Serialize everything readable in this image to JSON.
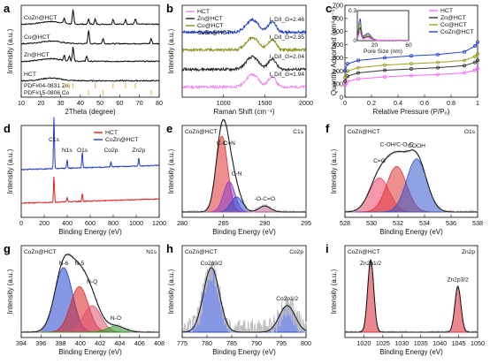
{
  "chart_data": [
    {
      "panel": "a",
      "type": "line",
      "xlabel": "2Theta (degree)",
      "ylabel": "Intensity (a.u.)",
      "xlim": [
        10,
        80
      ],
      "xticks": [
        10,
        20,
        30,
        40,
        50,
        60,
        70,
        80
      ],
      "series": [
        {
          "name": "CoZn@HCT",
          "color": "#000000",
          "offset": 0.0
        },
        {
          "name": "Co@HCT",
          "color": "#000000",
          "offset": 0.0
        },
        {
          "name": "Zn@HCT",
          "color": "#000000",
          "offset": 0.0
        },
        {
          "name": "HCT",
          "color": "#000000",
          "offset": 0.0
        }
      ],
      "references": [
        {
          "name": "PDF#15-0806 Co",
          "color": "#e8b84a",
          "peaks": [
            44.2,
            51.5,
            75.9
          ]
        },
        {
          "name": "PDF#04-0831 Zn",
          "color": "#e8b84a",
          "peaks": [
            31.8,
            34.4,
            36.3,
            47.5,
            56.6,
            62.9,
            67.9
          ]
        }
      ]
    },
    {
      "panel": "b",
      "type": "line",
      "xlabel": "Raman Shift (cm⁻¹)",
      "ylabel": "Intensity (a.u.)",
      "xlim": [
        500,
        2000
      ],
      "xticks": [
        1000,
        1500,
        2000
      ],
      "series": [
        {
          "name": "HCT",
          "color": "#ee82ee",
          "ratio": "I_D/I_G=1.94"
        },
        {
          "name": "Zn@HCT",
          "color": "#222222",
          "ratio": "I_D/I_G=2.04"
        },
        {
          "name": "Co@HCT",
          "color": "#8b8b1a",
          "ratio": "I_D/I_G=2.35"
        },
        {
          "name": "CoZn@HCT",
          "color": "#1f3fbf",
          "ratio": "I_D/I_G=2.46"
        }
      ]
    },
    {
      "panel": "c",
      "type": "line",
      "xlabel": "Relative Pressure (P/P₀)",
      "ylabel": "Quantity Adsorbed (cm³ g⁻¹)",
      "xlim": [
        0,
        1.0
      ],
      "ylim": [
        0,
        700
      ],
      "xticks": [
        0.0,
        0.2,
        0.4,
        0.6,
        0.8,
        1.0
      ],
      "yticks": [
        0,
        100,
        200,
        300,
        400,
        500,
        600,
        700
      ],
      "series": [
        {
          "name": "HCT",
          "color": "#ff66ff",
          "x": [
            0.0,
            0.02,
            0.1,
            0.3,
            0.5,
            0.7,
            0.9,
            0.98,
            1.0
          ],
          "y": [
            90,
            120,
            140,
            155,
            165,
            172,
            185,
            205,
            220
          ]
        },
        {
          "name": "Zn@HCT",
          "color": "#333333",
          "x": [
            0.0,
            0.02,
            0.1,
            0.3,
            0.5,
            0.7,
            0.9,
            0.98,
            1.0
          ],
          "y": [
            120,
            160,
            185,
            205,
            215,
            225,
            240,
            265,
            280
          ]
        },
        {
          "name": "Co@HCT",
          "color": "#a0a020",
          "x": [
            0.0,
            0.02,
            0.1,
            0.3,
            0.5,
            0.7,
            0.9,
            0.98,
            1.0
          ],
          "y": [
            150,
            200,
            225,
            245,
            255,
            265,
            280,
            310,
            330
          ]
        },
        {
          "name": "CoZn@HCT",
          "color": "#2244cc",
          "x": [
            0.0,
            0.02,
            0.1,
            0.3,
            0.5,
            0.7,
            0.9,
            0.98,
            1.0
          ],
          "y": [
            200,
            255,
            280,
            300,
            315,
            325,
            345,
            390,
            420
          ]
        }
      ],
      "inset": {
        "xlabel": "Pore Size (nm)",
        "ylabel": "dV/dD (cm³ g⁻¹ nm⁻¹)",
        "xlim": [
          0,
          60
        ],
        "ylim": [
          0,
          0.3
        ],
        "xticks": [
          20,
          60
        ],
        "yticks": [
          0.0,
          0.3
        ]
      }
    },
    {
      "panel": "d",
      "type": "line",
      "xlabel": "Binding Energy (eV)",
      "ylabel": "Intensity (a.u.)",
      "xlim": [
        0,
        1200
      ],
      "xticks": [
        0,
        200,
        400,
        600,
        800,
        1000,
        1200
      ],
      "series": [
        {
          "name": "HCT",
          "color": "#e02020"
        },
        {
          "name": "CoZn@HCT",
          "color": "#1f3fbf"
        }
      ],
      "annotations": [
        "C1s",
        "N1s",
        "O1s",
        "Co2p",
        "Zn2p"
      ]
    },
    {
      "panel": "e",
      "type": "line",
      "sample": "CoZn@HCT",
      "region": "C1s",
      "xlabel": "Binding Energy (eV)",
      "ylabel": "Intensity (a.u.)",
      "xlim": [
        280,
        295
      ],
      "xticks": [
        280,
        285,
        290,
        295
      ],
      "peaks": [
        {
          "label": "C-C",
          "center": 284.8,
          "color": "#e03030"
        },
        {
          "label": "C=N",
          "center": 285.7,
          "color": "#8a3fcf"
        },
        {
          "label": "C-N",
          "center": 286.6,
          "color": "#3050d0"
        },
        {
          "label": "-O-C=O",
          "center": 290.0,
          "color": "#c06090"
        }
      ]
    },
    {
      "panel": "f",
      "type": "line",
      "sample": "CoZn@HCT",
      "region": "O1s",
      "xlabel": "Binding Energy (eV)",
      "ylabel": "Intensity (a.u.)",
      "xlim": [
        528,
        538
      ],
      "xticks": [
        528,
        530,
        532,
        534,
        536,
        538
      ],
      "peaks": [
        {
          "label": "C=O",
          "center": 530.6,
          "color": "#ee4466"
        },
        {
          "label": "C-OH/C-O-C",
          "center": 531.9,
          "color": "#dd3333"
        },
        {
          "label": "COOH",
          "center": 533.4,
          "color": "#3355cc"
        }
      ]
    },
    {
      "panel": "g",
      "type": "line",
      "sample": "CoZn@HCT",
      "region": "N1s",
      "xlabel": "Binding Energy (eV)",
      "ylabel": "Intensity (a.u.)",
      "xlim": [
        394,
        408
      ],
      "xticks": [
        394,
        396,
        398,
        400,
        402,
        404,
        406,
        408
      ],
      "peaks": [
        {
          "label": "N-6",
          "center": 398.3,
          "color": "#2244cc"
        },
        {
          "label": "N-5",
          "center": 399.9,
          "color": "#dd2222"
        },
        {
          "label": "N-Q",
          "center": 401.2,
          "color": "#e05070"
        },
        {
          "label": "N-O",
          "center": 403.6,
          "color": "#229922"
        }
      ]
    },
    {
      "panel": "h",
      "type": "line",
      "sample": "CoZn@HCT",
      "region": "Co2p",
      "xlabel": "Binding Energy (eV)",
      "ylabel": "Intensity (a.u.)",
      "xlim": [
        775,
        800
      ],
      "xticks": [
        775,
        780,
        785,
        790,
        795,
        800
      ],
      "peaks": [
        {
          "label": "Co2p3/2",
          "center": 780.9,
          "color": "#2244cc"
        },
        {
          "label": "Co2p1/2",
          "center": 796.2,
          "color": "#2244cc"
        }
      ]
    },
    {
      "panel": "i",
      "type": "line",
      "sample": "CoZn@HCT",
      "region": "Zn2p",
      "xlabel": "Binding Energy (eV)",
      "ylabel": "Intensity (a.u.)",
      "xlim": [
        1015,
        1050
      ],
      "xticks": [
        1020,
        1025,
        1030,
        1035,
        1040,
        1045,
        1050
      ],
      "peaks": [
        {
          "label": "Zn2p1/2",
          "center": 1021.8,
          "color": "#dd2233"
        },
        {
          "label": "Zn2p3/2",
          "center": 1044.8,
          "color": "#dd2233"
        }
      ]
    }
  ],
  "ratio_prefix": "I",
  "ratio_suffix": "D",
  "ratio_g": "G"
}
